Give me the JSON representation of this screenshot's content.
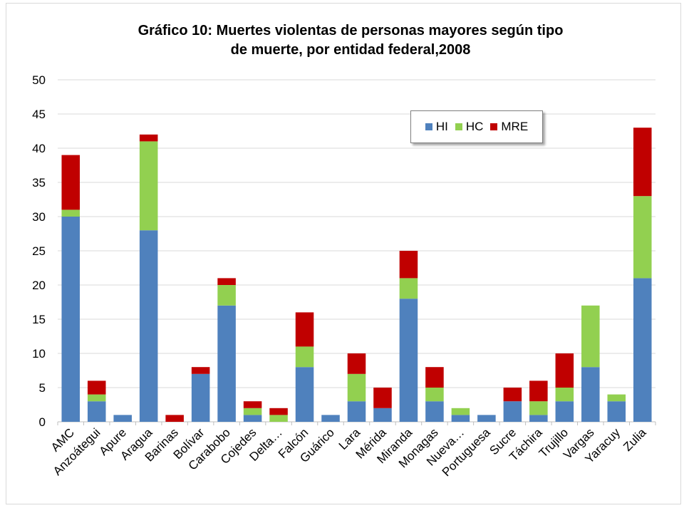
{
  "chart_data": {
    "type": "bar",
    "stacked": true,
    "title": "Gráfico 10: Muertes violentas de personas mayores según tipo de muerte,  por entidad federal,2008",
    "title_lines": [
      "Gráfico 10: Muertes violentas de personas mayores según tipo",
      "de muerte,  por entidad federal,2008"
    ],
    "xlabel": "",
    "ylabel": "",
    "ylim": [
      0,
      50
    ],
    "yticks": [
      "0",
      "5",
      "10",
      "15",
      "20",
      "25",
      "30",
      "35",
      "40",
      "45",
      "50"
    ],
    "grid": true,
    "legend_position": "top-right",
    "categories": [
      "AMC",
      "Anzoátegui",
      "Apure",
      "Aragua",
      "Barinas",
      "Bolívar",
      "Carabobo",
      "Cojedes",
      "Delta…",
      "Falcón",
      "Guárico",
      "Lara",
      "Mérida",
      "Miranda",
      "Monagas",
      "Nueva…",
      "Portuguesa",
      "Sucre",
      "Táchira",
      "Trujillo",
      "Vargas",
      "Yaracuy",
      "Zulia"
    ],
    "series": [
      {
        "name": "HI",
        "color": "#4f81bd",
        "values": [
          30,
          3,
          1,
          28,
          0,
          7,
          17,
          1,
          0,
          8,
          1,
          3,
          2,
          18,
          3,
          1,
          1,
          3,
          1,
          3,
          8,
          3,
          21
        ]
      },
      {
        "name": "HC",
        "color": "#92d050",
        "values": [
          1,
          1,
          0,
          13,
          0,
          0,
          3,
          1,
          1,
          3,
          0,
          4,
          0,
          3,
          2,
          1,
          0,
          0,
          2,
          2,
          9,
          1,
          12
        ]
      },
      {
        "name": "MRE",
        "color": "#c00000",
        "values": [
          8,
          2,
          0,
          1,
          1,
          1,
          1,
          1,
          1,
          5,
          0,
          3,
          3,
          4,
          3,
          0,
          0,
          2,
          3,
          5,
          0,
          0,
          10
        ]
      }
    ]
  }
}
